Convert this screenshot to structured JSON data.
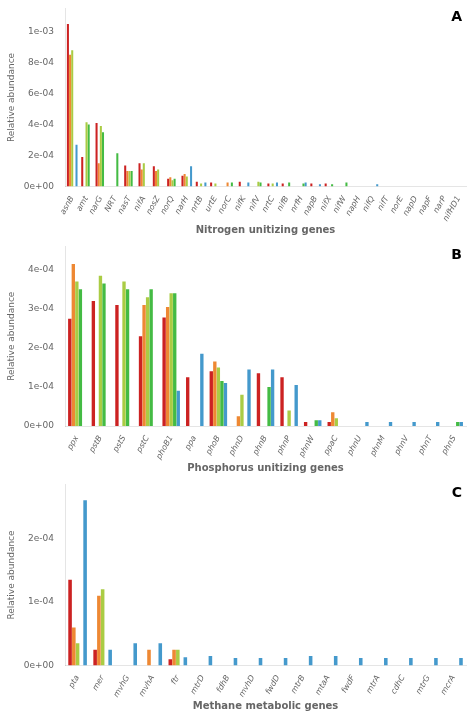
{
  "chart_data": [
    {
      "type": "bar",
      "xlabel": "Nitrogen unitizing genes",
      "ylabel": "Relative abundance",
      "annotations": [
        "A"
      ],
      "grid": false,
      "ylim": [
        0,
        0.00115
      ],
      "yticks": [
        {
          "value": 0,
          "label": "0e+00"
        },
        {
          "value": 0.0002,
          "label": "2e-04"
        },
        {
          "value": 0.0004,
          "label": "4e-04"
        },
        {
          "value": 0.0006,
          "label": "6e-04"
        },
        {
          "value": 0.0008,
          "label": "8e-04"
        },
        {
          "value": 0.001,
          "label": "1e-03"
        }
      ],
      "categories": [
        "asnB",
        "amt",
        "narG",
        "NRT",
        "nasT",
        "nifA",
        "nosZ",
        "norQ",
        "narH",
        "nrtB",
        "urtE",
        "norC",
        "nifK",
        "nifV",
        "nrtC",
        "nifB",
        "nrfH",
        "napB",
        "nifX",
        "nifW",
        "napH",
        "nifQ",
        "nifT",
        "norE",
        "napD",
        "napF",
        "narP",
        "nifHD1"
      ],
      "series": [
        {
          "color": "#cc2222",
          "values": [
            0.00105,
            0.00019,
            0.00041,
            0,
            0.000135,
            0.00015,
            0.00013,
            5e-05,
            7e-05,
            3e-05,
            2.5e-05,
            0,
            3e-05,
            0,
            2e-05,
            2e-05,
            0,
            2e-05,
            2e-05,
            0,
            0,
            0,
            0,
            0,
            0,
            0,
            0,
            0
          ]
        },
        {
          "color": "#ee8833",
          "values": [
            0.00085,
            0,
            0.00015,
            0,
            0.0001,
            0.00011,
            0.0001,
            6e-05,
            8e-05,
            0,
            0,
            2.5e-05,
            0,
            0,
            0,
            0,
            0,
            0,
            0,
            0,
            0,
            0,
            0,
            0,
            0,
            0,
            0,
            0
          ]
        },
        {
          "color": "#aacc44",
          "values": [
            0.00088,
            0.000415,
            0.00039,
            0,
            0.0001,
            0.00015,
            0.00011,
            4e-05,
            6.5e-05,
            2e-05,
            2e-05,
            0,
            0,
            3e-05,
            2e-05,
            0,
            0,
            0,
            0,
            0,
            0,
            0,
            0,
            0,
            0,
            0,
            0,
            0
          ]
        },
        {
          "color": "#44bb44",
          "values": [
            0,
            0.0004,
            0.00035,
            0.000215,
            0.0001,
            0,
            0,
            5e-05,
            0,
            0,
            0,
            2.5e-05,
            0,
            2.5e-05,
            0,
            2.5e-05,
            2e-05,
            0,
            1.5e-05,
            2.5e-05,
            0,
            0,
            0,
            0,
            0,
            0,
            0,
            0
          ]
        },
        {
          "color": "#4499cc",
          "values": [
            0.00027,
            0,
            0,
            0,
            0,
            0,
            0,
            0,
            0.00013,
            2.5e-05,
            0,
            0,
            2.5e-05,
            0,
            2.5e-05,
            0,
            2.5e-05,
            1.5e-05,
            0,
            0,
            0,
            1.5e-05,
            0,
            0,
            0,
            0,
            0,
            0
          ]
        }
      ]
    },
    {
      "type": "bar",
      "xlabel": "Phosphorus unitizing genes",
      "ylabel": "Relative abundance",
      "annotations": [
        "B"
      ],
      "grid": false,
      "ylim": [
        0,
        0.00046
      ],
      "yticks": [
        {
          "value": 0,
          "label": "0e+00"
        },
        {
          "value": 0.0001,
          "label": "1e-04"
        },
        {
          "value": 0.0002,
          "label": "2e-04"
        },
        {
          "value": 0.0003,
          "label": "3e-04"
        },
        {
          "value": 0.0004,
          "label": "4e-04"
        }
      ],
      "categories": [
        "ppx",
        "pstB",
        "pstS",
        "pstC",
        "phoB1",
        "ppa",
        "phoB",
        "phnD",
        "phnB",
        "phnP",
        "phnW",
        "ppaC",
        "phnU",
        "phnM",
        "phnV",
        "phnT",
        "phnS"
      ],
      "series": [
        {
          "color": "#cc2222",
          "values": [
            0.000275,
            0.00032,
            0.00031,
            0.00023,
            0.000278,
            0.000125,
            0.00014,
            0,
            0.000135,
            0.000125,
            1e-05,
            1e-05,
            0,
            0,
            0,
            0,
            0
          ]
        },
        {
          "color": "#ee8833",
          "values": [
            0.000415,
            0,
            0,
            0.00031,
            0.000305,
            0,
            0.000165,
            2.5e-05,
            0,
            0,
            0,
            3.5e-05,
            0,
            0,
            0,
            0,
            0
          ]
        },
        {
          "color": "#aacc44",
          "values": [
            0.00037,
            0.000385,
            0.00037,
            0.00033,
            0.00034,
            0,
            0.00015,
            8e-05,
            0,
            4e-05,
            0,
            2e-05,
            0,
            0,
            0,
            0,
            0
          ]
        },
        {
          "color": "#44bb44",
          "values": [
            0.00035,
            0.000365,
            0.00035,
            0.00035,
            0.00034,
            0,
            0.000115,
            0,
            0.0001,
            0,
            1.5e-05,
            0,
            0,
            0,
            0,
            0,
            1e-05
          ]
        },
        {
          "color": "#4499cc",
          "values": [
            0,
            0,
            0,
            0,
            9e-05,
            0.000185,
            0.00011,
            0.000145,
            0.000145,
            0.000105,
            1.5e-05,
            0,
            1e-05,
            1e-05,
            1e-05,
            1e-05,
            1e-05
          ]
        }
      ]
    },
    {
      "type": "bar",
      "xlabel": "Methane metabolic genes",
      "ylabel": "Relative abundance",
      "annotations": [
        "C"
      ],
      "grid": false,
      "ylim": [
        0,
        0.000285
      ],
      "yticks": [
        {
          "value": 0,
          "label": "0e+00"
        },
        {
          "value": 0.0001,
          "label": "1e-04"
        },
        {
          "value": 0.0002,
          "label": "2e-04"
        }
      ],
      "categories": [
        "pta",
        "mer",
        "mvhG",
        "mvhA",
        "ftr",
        "mtrD",
        "fdhB",
        "mvhD",
        "fwdD",
        "mtrB",
        "mtaA",
        "fwdF",
        "mtrA",
        "cdhC",
        "mtrG",
        "mcrA"
      ],
      "series": [
        {
          "color": "#cc2222",
          "values": [
            0.000135,
            2.5e-05,
            0,
            0,
            1e-05,
            0,
            0,
            0,
            0,
            0,
            0,
            0,
            0,
            0,
            0,
            0
          ]
        },
        {
          "color": "#ee8833",
          "values": [
            6e-05,
            0.00011,
            0,
            2.5e-05,
            2.5e-05,
            0,
            0,
            0,
            0,
            0,
            0,
            0,
            0,
            0,
            0,
            0
          ]
        },
        {
          "color": "#aacc44",
          "values": [
            3.5e-05,
            0.00012,
            0,
            0,
            2.5e-05,
            0,
            0,
            0,
            0,
            0,
            0,
            0,
            0,
            0,
            0,
            0
          ]
        },
        {
          "color": "#44bb44",
          "values": [
            0,
            0,
            0,
            0,
            0,
            0,
            0,
            0,
            0,
            0,
            0,
            0,
            0,
            0,
            0,
            0
          ]
        },
        {
          "color": "#4499cc",
          "values": [
            0.00026,
            2.5e-05,
            3.5e-05,
            3.5e-05,
            1.3e-05,
            1.5e-05,
            1.2e-05,
            1.2e-05,
            1.2e-05,
            1.5e-05,
            1.5e-05,
            1.2e-05,
            1.2e-05,
            1.2e-05,
            1.2e-05,
            1.2e-05
          ]
        }
      ]
    }
  ]
}
